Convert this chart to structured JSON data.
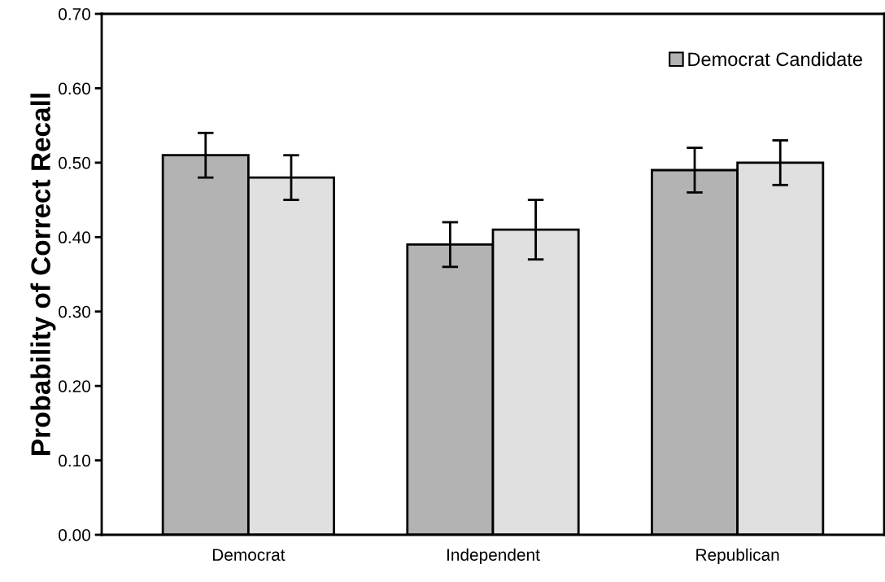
{
  "chart_data": {
    "type": "bar",
    "ylabel": "Probability of Correct Recall",
    "categories": [
      "Democrat",
      "Independent",
      "Republican"
    ],
    "series": [
      {
        "name": "Democrat Candidate",
        "color": "#b3b3b3",
        "values": [
          0.51,
          0.39,
          0.49
        ],
        "errors": [
          0.03,
          0.03,
          0.03
        ]
      },
      {
        "color": "#e0e0e0",
        "values": [
          0.48,
          0.41,
          0.5
        ],
        "errors": [
          0.03,
          0.04,
          0.03
        ]
      }
    ],
    "ylim": [
      0,
      0.7
    ],
    "yticks": [
      {
        "value": 0,
        "label": "0.00"
      },
      {
        "value": 0.1,
        "label": "0.10"
      },
      {
        "value": 0.2,
        "label": "0.20"
      },
      {
        "value": 0.3,
        "label": "0.30"
      },
      {
        "value": 0.4,
        "label": "0.40"
      },
      {
        "value": 0.5,
        "label": "0.50"
      },
      {
        "value": 0.6,
        "label": "0.60"
      },
      {
        "value": 0.7,
        "label": "0.70"
      }
    ],
    "grid": false,
    "legend": "top right"
  }
}
